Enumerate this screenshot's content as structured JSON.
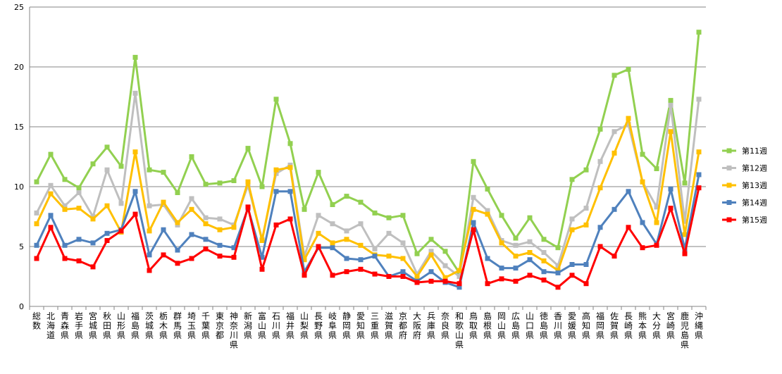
{
  "chart_data": {
    "type": "line",
    "title": "",
    "xlabel": "",
    "ylabel": "",
    "ylim": [
      0,
      25
    ],
    "yticks": [
      0,
      5,
      10,
      15,
      20,
      25
    ],
    "grid": "horizontal",
    "legend_position": "right",
    "marker": "square",
    "categories": [
      "総数",
      "北海道",
      "青森県",
      "岩手県",
      "宮城県",
      "秋田県",
      "山形県",
      "福島県",
      "茨城県",
      "栃木県",
      "群馬県",
      "埼玉県",
      "千葉県",
      "東京都",
      "神奈川県",
      "新潟県",
      "富山県",
      "石川県",
      "福井県",
      "山梨県",
      "長野県",
      "岐阜県",
      "静岡県",
      "愛知県",
      "三重県",
      "滋賀県",
      "京都府",
      "大阪府",
      "兵庫県",
      "奈良県",
      "和歌山県",
      "鳥取県",
      "島根県",
      "岡山県",
      "広島県",
      "山口県",
      "徳島県",
      "香川県",
      "愛媛県",
      "高知県",
      "福岡県",
      "佐賀県",
      "長崎県",
      "熊本県",
      "大分県",
      "宮崎県",
      "鹿児島県",
      "沖縄県"
    ],
    "series": [
      {
        "name": "第11週",
        "color": "#92d050",
        "values": [
          10.4,
          12.7,
          10.6,
          9.9,
          11.9,
          13.3,
          11.7,
          20.8,
          11.4,
          11.2,
          9.5,
          12.5,
          10.2,
          10.3,
          10.5,
          13.2,
          10.0,
          17.3,
          13.6,
          8.1,
          11.2,
          8.5,
          9.2,
          8.7,
          7.8,
          7.4,
          7.6,
          4.4,
          5.6,
          4.6,
          2.8,
          12.1,
          9.8,
          7.6,
          5.7,
          7.4,
          5.6,
          4.9,
          10.6,
          11.4,
          14.8,
          19.3,
          19.8,
          12.7,
          11.5,
          17.2,
          10.3,
          22.9
        ]
      },
      {
        "name": "第12週",
        "color": "#bfbfbf",
        "values": [
          7.8,
          10.1,
          8.4,
          9.5,
          7.5,
          11.4,
          8.6,
          17.8,
          8.4,
          8.5,
          6.8,
          9.0,
          7.4,
          7.3,
          6.8,
          10.1,
          5.6,
          11.1,
          11.8,
          4.2,
          7.6,
          6.9,
          6.3,
          6.9,
          4.8,
          6.1,
          5.3,
          2.7,
          4.6,
          3.4,
          2.5,
          9.1,
          8.0,
          5.5,
          5.1,
          5.4,
          4.5,
          3.4,
          7.3,
          8.2,
          12.1,
          14.6,
          15.2,
          10.4,
          8.3,
          16.8,
          7.1,
          17.3
        ]
      },
      {
        "name": "第13週",
        "color": "#ffc000",
        "values": [
          6.9,
          9.4,
          8.1,
          8.2,
          7.3,
          8.4,
          6.2,
          12.9,
          6.3,
          8.7,
          7.0,
          8.1,
          6.9,
          6.4,
          6.6,
          10.4,
          5.5,
          11.4,
          11.6,
          3.9,
          6.1,
          5.3,
          5.6,
          5.1,
          4.3,
          4.2,
          4.0,
          2.5,
          4.3,
          2.4,
          3.0,
          8.1,
          7.7,
          5.3,
          4.2,
          4.5,
          3.8,
          3.0,
          6.4,
          6.8,
          9.9,
          12.8,
          15.7,
          10.4,
          7.0,
          14.6,
          6.0,
          12.9
        ]
      },
      {
        "name": "第14週",
        "color": "#4f81bd",
        "values": [
          5.1,
          7.6,
          5.1,
          5.6,
          5.3,
          6.1,
          6.4,
          9.6,
          4.3,
          6.4,
          4.7,
          6.0,
          5.6,
          5.1,
          4.9,
          8.2,
          4.1,
          9.6,
          9.6,
          2.9,
          4.9,
          4.9,
          4.0,
          3.9,
          4.2,
          2.5,
          2.9,
          2.1,
          2.9,
          2.0,
          1.6,
          7.0,
          4.0,
          3.2,
          3.2,
          3.9,
          2.9,
          2.8,
          3.5,
          3.5,
          6.6,
          8.1,
          9.6,
          7.0,
          5.2,
          9.8,
          4.8,
          11.0
        ]
      },
      {
        "name": "第15週",
        "color": "#ff0000",
        "values": [
          4.0,
          6.6,
          4.0,
          3.8,
          3.3,
          5.5,
          6.3,
          7.7,
          3.0,
          4.3,
          3.6,
          4.0,
          4.8,
          4.2,
          4.1,
          8.3,
          3.1,
          6.8,
          7.3,
          2.6,
          5.0,
          2.6,
          2.9,
          3.1,
          2.7,
          2.5,
          2.5,
          2.0,
          2.1,
          2.1,
          1.9,
          6.4,
          1.9,
          2.3,
          2.1,
          2.6,
          2.2,
          1.6,
          2.6,
          1.9,
          5.0,
          4.2,
          6.6,
          4.9,
          5.1,
          8.2,
          4.4,
          9.9
        ]
      }
    ]
  }
}
